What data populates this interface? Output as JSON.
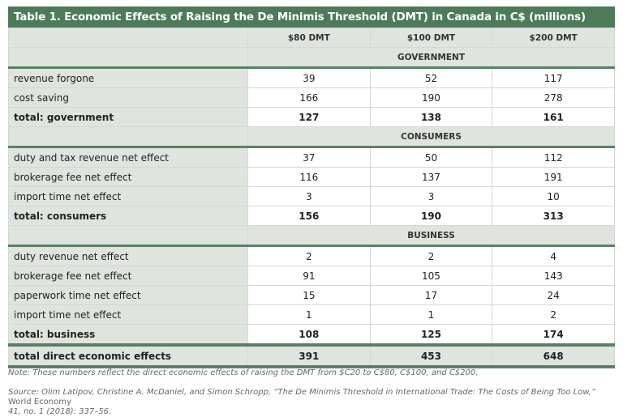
{
  "title": "Table 1. Economic Effects of Raising the De Minimis Threshold (DMT) in Canada in C$ (millions)",
  "columns": [
    "$80 DMT",
    "$100 DMT",
    "$200 DMT"
  ],
  "sections": [
    {
      "name": "GOVERNMENT",
      "rows": [
        {
          "label": "revenue forgone",
          "values": [
            "39",
            "52",
            "117"
          ]
        },
        {
          "label": "cost saving",
          "values": [
            "166",
            "190",
            "278"
          ]
        },
        {
          "label": "total: government",
          "values": [
            "127",
            "138",
            "161"
          ],
          "total": true
        }
      ]
    },
    {
      "name": "CONSUMERS",
      "rows": [
        {
          "label": "duty and tax revenue net effect",
          "values": [
            "37",
            "50",
            "112"
          ]
        },
        {
          "label": "brokerage fee net effect",
          "values": [
            "116",
            "137",
            "191"
          ]
        },
        {
          "label": "import time net effect",
          "values": [
            "3",
            "3",
            "10"
          ]
        },
        {
          "label": "total: consumers",
          "values": [
            "156",
            "190",
            "313"
          ],
          "total": true
        }
      ]
    },
    {
      "name": "BUSINESS",
      "rows": [
        {
          "label": "duty revenue net effect",
          "values": [
            "2",
            "2",
            "4"
          ]
        },
        {
          "label": "brokerage fee net effect",
          "values": [
            "91",
            "105",
            "143"
          ]
        },
        {
          "label": "paperwork time net effect",
          "values": [
            "15",
            "17",
            "24"
          ]
        },
        {
          "label": "import time net effect",
          "values": [
            "1",
            "1",
            "2"
          ]
        },
        {
          "label": "total: business",
          "values": [
            "108",
            "125",
            "174"
          ],
          "total": true
        }
      ]
    }
  ],
  "grand_total": {
    "label": "total direct economic effects",
    "values": [
      "391",
      "453",
      "648"
    ]
  },
  "note": "Note: These numbers reflect the direct economic effects of raising the DMT from $C20 to C$80, C$100, and C$200.",
  "source": {
    "text": "Source: Olim Latipov, Christine A. McDaniel, and Simon Schropp, “The De Minimis Threshold in International Trade: The Costs of Being Too Low,”",
    "journal": " World Economy",
    "tail": "41, no. 1 (2018): 337–56."
  },
  "colors": {
    "header_green": "#4d7a58",
    "label_gray": "#dfe4df"
  }
}
